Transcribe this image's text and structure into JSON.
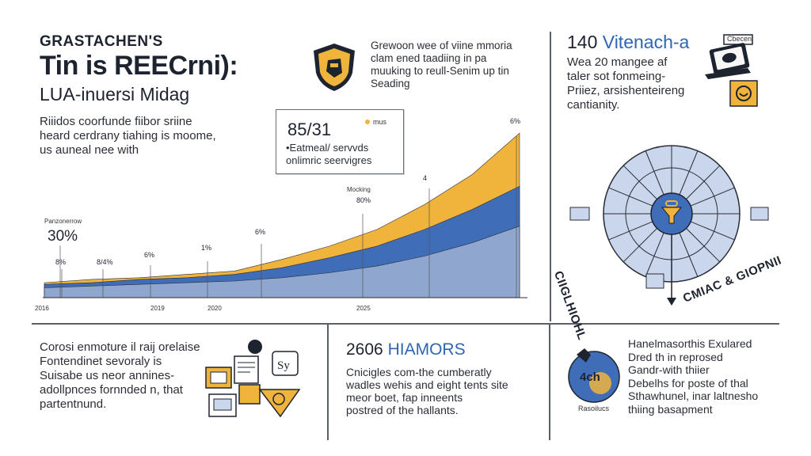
{
  "colors": {
    "gold": "#f0b43c",
    "blue": "#3f6db8",
    "lightBlue": "#8fa6cf",
    "dialFill": "#c9d6ec",
    "dark": "#1e2330"
  },
  "header": {
    "kicker": "GRASTACHEN'S",
    "title": "Tin is REECrni):",
    "subtitle": "LUA-inuersi Midag",
    "intro": [
      "Riiidos coorfunde fiibor sriine",
      "heard cerdrany tiahing is moome,",
      "us auneal nee with"
    ]
  },
  "top_mid_text": [
    "Grewoon wee of viine mmoria",
    "clam ened taadiing in pa",
    "muuking to reull-Senim up tin",
    "Seading"
  ],
  "top_right": {
    "number": "140",
    "accent": "Vitenach-a",
    "lines": [
      "Wea 20 mangee af",
      "taler sot fonmeing-",
      "Priiez, arsishenteireng",
      "cantianity."
    ]
  },
  "callout": {
    "value": "85/31",
    "legend_label": "mus",
    "lines": [
      "•Eatmeal/ servvds",
      "onlimric seervigres"
    ]
  },
  "chart_data": {
    "type": "area",
    "x": [
      0,
      10,
      20,
      30,
      40,
      50,
      60,
      70,
      80,
      90,
      100
    ],
    "series": [
      {
        "color": "#8fa6cf",
        "values": [
          6,
          7,
          8,
          9,
          10,
          12,
          15,
          19,
          25,
          33,
          43
        ]
      },
      {
        "color": "#3f6db8",
        "values": [
          8,
          9,
          11,
          12,
          14,
          18,
          24,
          31,
          41,
          53,
          67
        ]
      },
      {
        "color": "#f0b43c",
        "values": [
          9,
          11,
          12,
          14,
          16,
          23,
          31,
          41,
          56,
          74,
          99
        ]
      }
    ],
    "annotations": [
      {
        "label": "Panzonerrow",
        "value": "30%"
      },
      {
        "label": "",
        "value": "8%"
      },
      {
        "label": "",
        "value": "8/4%"
      },
      {
        "label": "",
        "value": "6%"
      },
      {
        "label": "",
        "value": "1%"
      },
      {
        "label": "",
        "value": "6%"
      },
      {
        "label": "Mocking",
        "value": "80%"
      },
      {
        "label": "",
        "value": "4"
      },
      {
        "label": "",
        "value": "6%"
      }
    ],
    "x_ticks": [
      "2016",
      "2019",
      "2020",
      "2025"
    ]
  },
  "dial": {
    "left_label": "CIIGLHIOHL",
    "right_label": "CMIAC & GIOPNII",
    "top_label": "Cbecen",
    "badge_label": "..."
  },
  "bottom_left": {
    "lines": [
      "Corosi enmoture il raij orelaise",
      "Fontendinet sevoraly is",
      "Suisabe us neor annines-",
      "adollpnces fornnded n, that",
      "partentnund."
    ]
  },
  "bottom_mid": {
    "number": "2606",
    "accent": "HIAMORS",
    "lines": [
      "Cnicigles com-the cumberatly",
      "wadles wehis and eight tents site",
      "meor boet, fap inneents",
      "postred of the hallants."
    ]
  },
  "bottom_right": {
    "badge": "4ch",
    "badge_caption": "Rasoilucs",
    "lines": [
      "Hanelmasorthis Exulared",
      "Dred th in reprosed",
      "Gandr-with thiier",
      "Debelhs for poste of thal",
      "Sthawhunel, inar laltnesho",
      "thiing basapment"
    ]
  }
}
